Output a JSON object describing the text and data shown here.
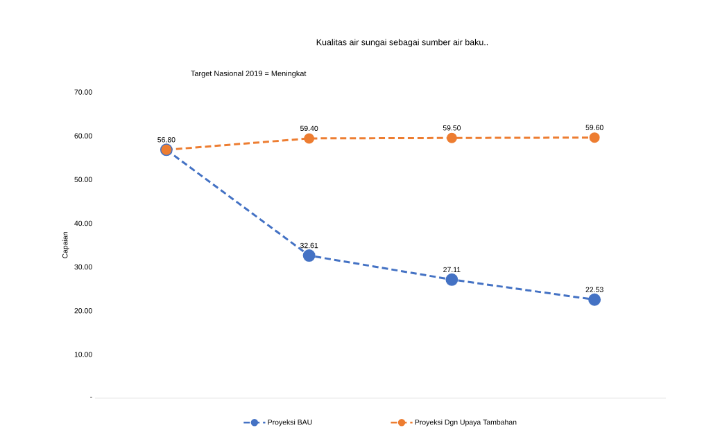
{
  "chart_data": {
    "type": "line",
    "title": "Kualitas air sungai sebagai sumber air baku..",
    "ylabel": "Capaian",
    "annotations": [
      "Target Nasional 2019 = Meningkat"
    ],
    "categories": [
      null,
      null,
      null,
      null
    ],
    "series": [
      {
        "name": "Proyeksi BAU",
        "color": "#4472c4",
        "values": [
          56.8,
          32.61,
          27.11,
          22.53
        ],
        "value_labels": [
          null,
          "32.61",
          "27.11",
          "22.53"
        ]
      },
      {
        "name": "Proyeksi Dgn Upaya Tambahan",
        "color": "#ed7d31",
        "values": [
          56.8,
          59.4,
          59.5,
          59.6
        ],
        "value_labels": [
          "56.80",
          "59.40",
          "59.50",
          "59.60"
        ]
      }
    ],
    "ylim": [
      0,
      70
    ],
    "yticks": [
      {
        "value": 0,
        "label": "-"
      },
      {
        "value": 10,
        "label": "10.00"
      },
      {
        "value": 20,
        "label": "20.00"
      },
      {
        "value": 30,
        "label": "30.00"
      },
      {
        "value": 40,
        "label": "40.00"
      },
      {
        "value": 50,
        "label": "50.00"
      },
      {
        "value": 60,
        "label": "60.00"
      },
      {
        "value": 70,
        "label": "70.00"
      }
    ],
    "grid": false,
    "legend": "bottom",
    "marker": "circle",
    "line_style": "dashed"
  }
}
